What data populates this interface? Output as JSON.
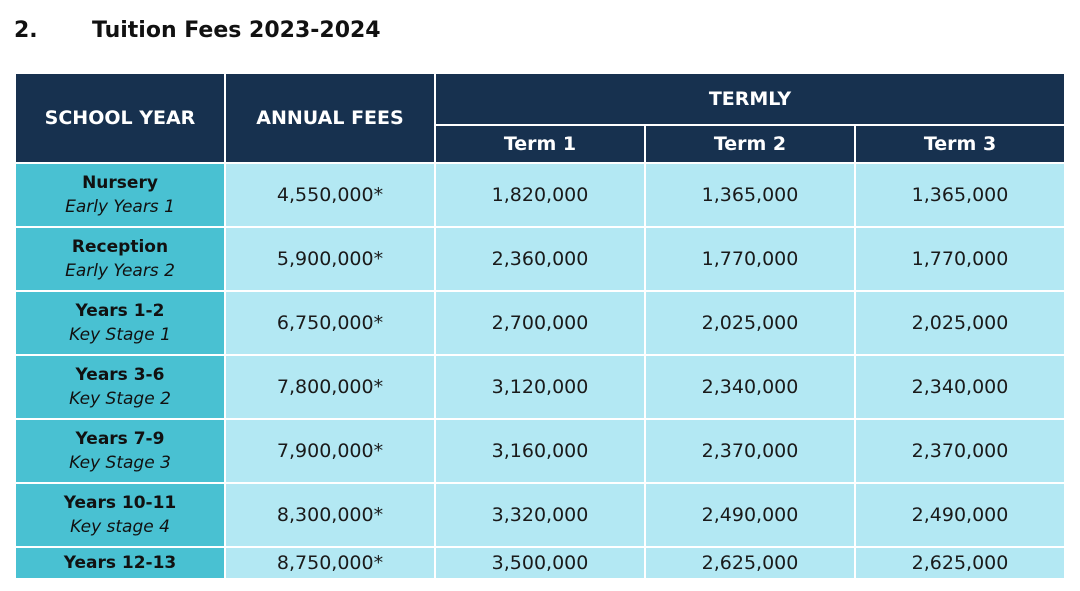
{
  "section": {
    "number": "2.",
    "title": "Tuition Fees 2023-2024"
  },
  "table": {
    "headers": {
      "school_year": "SCHOOL YEAR",
      "annual_fees": "ANNUAL FEES",
      "termly": "TERMLY",
      "terms": [
        "Term 1",
        "Term 2",
        "Term 3"
      ]
    },
    "rows": [
      {
        "year": "Nursery",
        "stage": "Early Years 1",
        "annual": "4,550,000*",
        "term1": "1,820,000",
        "term2": "1,365,000",
        "term3": "1,365,000"
      },
      {
        "year": "Reception",
        "stage": "Early Years 2",
        "annual": "5,900,000*",
        "term1": "2,360,000",
        "term2": "1,770,000",
        "term3": "1,770,000"
      },
      {
        "year": "Years 1-2",
        "stage": "Key Stage 1",
        "annual": "6,750,000*",
        "term1": "2,700,000",
        "term2": "2,025,000",
        "term3": "2,025,000"
      },
      {
        "year": "Years 3-6",
        "stage": "Key Stage 2",
        "annual": "7,800,000*",
        "term1": "3,120,000",
        "term2": "2,340,000",
        "term3": "2,340,000"
      },
      {
        "year": "Years 7-9",
        "stage": "Key Stage 3",
        "annual": "7,900,000*",
        "term1": "3,160,000",
        "term2": "2,370,000",
        "term3": "2,370,000"
      },
      {
        "year": "Years 10-11",
        "stage": "Key stage 4",
        "annual": "8,300,000*",
        "term1": "3,320,000",
        "term2": "2,490,000",
        "term3": "2,490,000"
      },
      {
        "year": "Years 12-13",
        "stage": "",
        "annual": "8,750,000*",
        "term1": "3,500,000",
        "term2": "2,625,000",
        "term3": "2,625,000"
      }
    ]
  },
  "colors": {
    "header_bg": "#17314f",
    "year_bg": "#49c1d2",
    "value_bg": "#b3e8f3"
  }
}
